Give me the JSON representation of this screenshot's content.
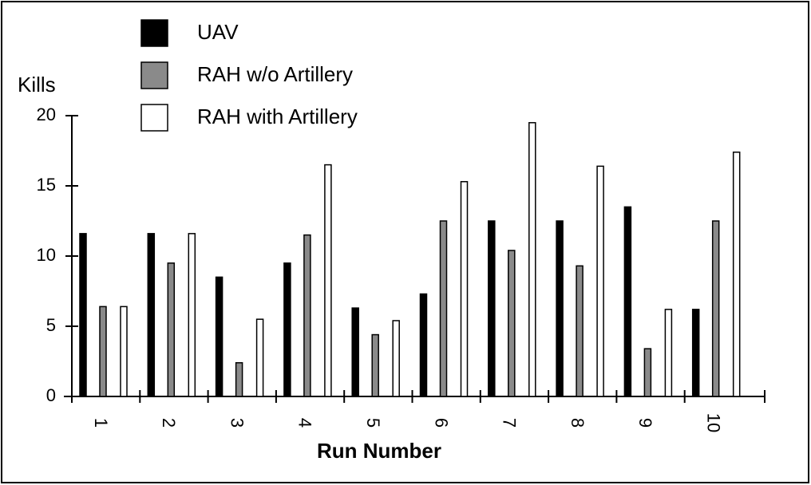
{
  "chart_data": {
    "type": "bar",
    "y_label": "Kills",
    "x_label": "Run Number",
    "categories": [
      "1",
      "2",
      "3",
      "4",
      "5",
      "6",
      "7",
      "8",
      "9",
      "10"
    ],
    "series": [
      {
        "name": "UAV",
        "color": "#000000",
        "values": [
          11.6,
          11.6,
          8.5,
          9.5,
          6.3,
          7.3,
          12.5,
          12.5,
          13.5,
          6.2
        ]
      },
      {
        "name": "RAH w/o Artillery",
        "color": "#8a8a8a",
        "values": [
          6.4,
          9.5,
          2.4,
          11.5,
          4.4,
          12.5,
          10.4,
          9.3,
          3.4,
          12.5
        ]
      },
      {
        "name": "RAH with Artillery",
        "color": "#ffffff",
        "values": [
          6.4,
          11.6,
          5.5,
          16.5,
          5.4,
          15.3,
          19.5,
          16.4,
          6.2,
          17.4
        ]
      }
    ],
    "ylim": [
      0,
      20
    ],
    "yticks": [
      0,
      5,
      10,
      15,
      20
    ]
  }
}
